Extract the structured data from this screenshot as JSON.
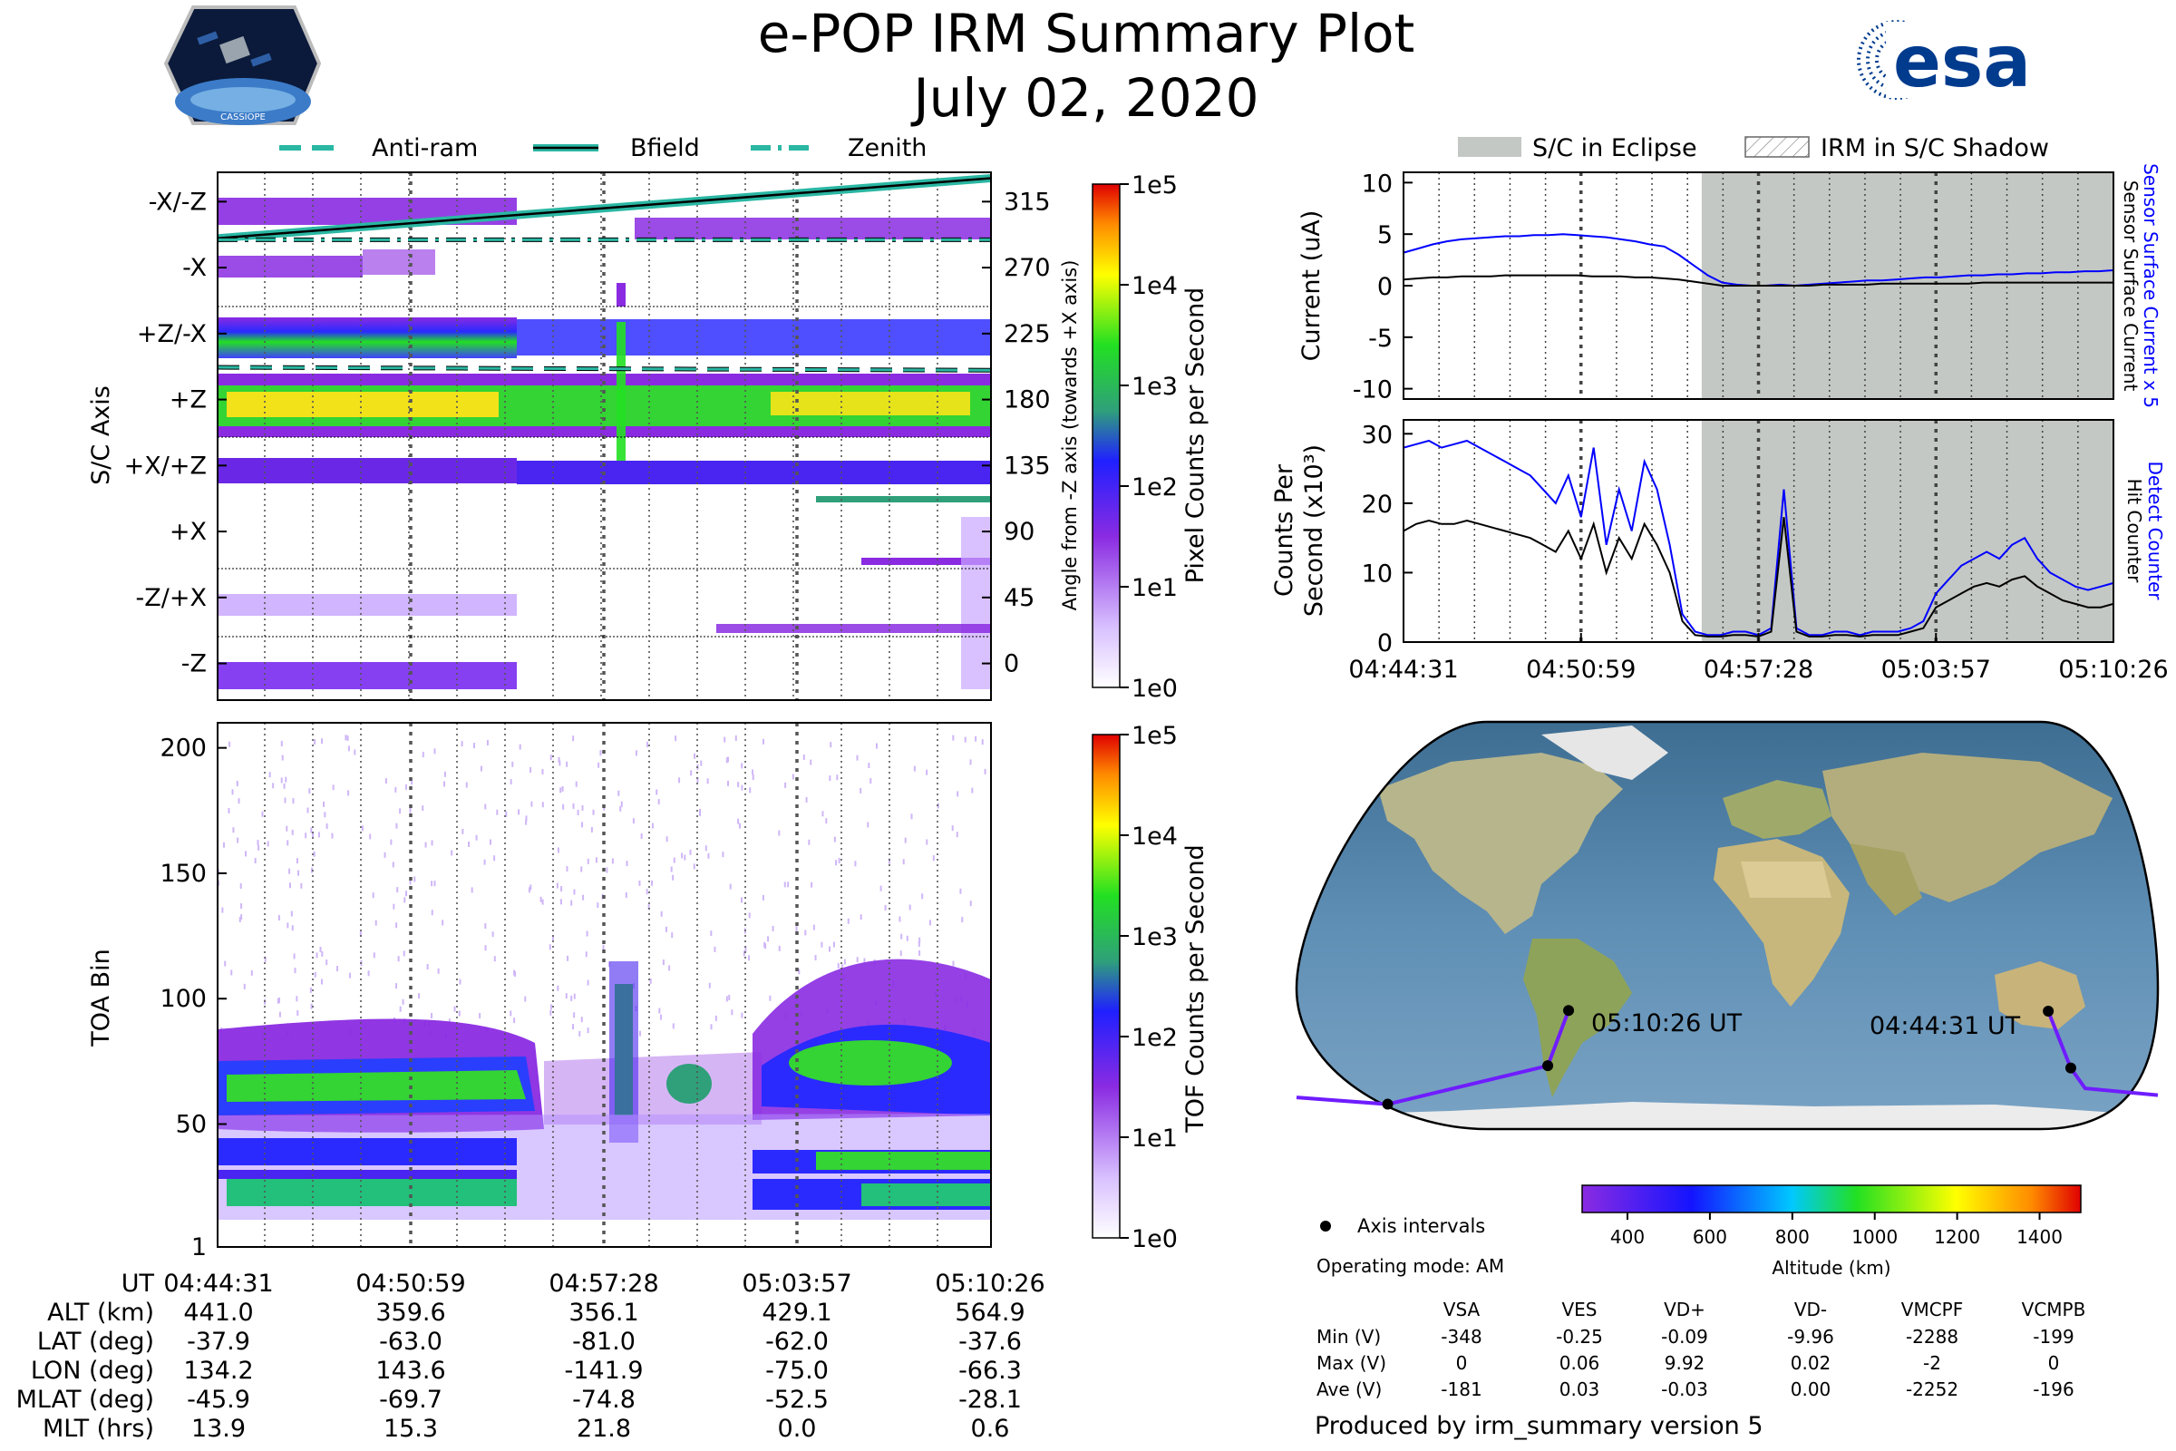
{
  "header": {
    "title": "e-POP IRM Summary Plot",
    "date": "July 02, 2020",
    "mission_logo_text": "CASSIOPE",
    "agency_logo_text": "esa"
  },
  "colors": {
    "accent_teal": "#2ab7a3",
    "line_blue": "#0000ff",
    "eclipse_gray": "#c4c8c4",
    "esa_blue": "#003b8e"
  },
  "chart_data": [
    {
      "id": "angle-spectrogram",
      "type": "heatmap",
      "ylabel": "S/C Axis",
      "y_tick_labels": [
        "-X/-Z",
        "-X",
        "+Z/-X",
        "+Z",
        "+X/+Z",
        "+X",
        "-Z/+X",
        "-Z"
      ],
      "right_ylabel": "Angle from -Z axis (towards +X axis)",
      "right_ticks": [
        315,
        270,
        225,
        180,
        135,
        90,
        45,
        0
      ],
      "right_ylim": [
        -25,
        335
      ],
      "legend": [
        "Anti-ram",
        "Bfield",
        "Zenith"
      ],
      "bfield_start_deg": 290,
      "bfield_end_deg": 331,
      "zenith_deg": 289,
      "antiram_start_deg": 202,
      "antiram_end_deg": 200,
      "colorbar": {
        "label": "Pixel Counts per Second",
        "ticks": [
          "1e5",
          "1e4",
          "1e3",
          "1e2",
          "1e1",
          "1e0"
        ]
      }
    },
    {
      "id": "toa-spectrogram",
      "type": "heatmap",
      "ylabel": "TOA Bin",
      "yticks": [
        200,
        150,
        100,
        50,
        1
      ],
      "ylim": [
        1,
        210
      ],
      "colorbar": {
        "label": "TOF Counts per Second",
        "ticks": [
          "1e5",
          "1e4",
          "1e3",
          "1e2",
          "1e1",
          "1e0"
        ]
      }
    },
    {
      "id": "current-panel",
      "type": "line",
      "ylabel": "Current (uA)",
      "right_labels": [
        "Sensor Surface Current x 5",
        "Sensor Surface Current"
      ],
      "yticks": [
        10,
        5,
        0,
        -5,
        -10
      ],
      "ylim": [
        -11,
        11
      ],
      "legend": [
        "S/C in Eclipse",
        "IRM in S/C Shadow"
      ],
      "eclipse_start_frac": 0.42,
      "series": [
        {
          "name": "Sensor Surface Current x 5",
          "color": "#0000ff",
          "values": [
            3.2,
            3.6,
            4.0,
            4.3,
            4.5,
            4.6,
            4.7,
            4.8,
            4.8,
            4.9,
            4.9,
            5.0,
            4.9,
            4.8,
            4.7,
            4.5,
            4.3,
            4.0,
            3.8,
            3.0,
            2.0,
            1.0,
            0.3,
            0.1,
            0.0,
            0.0,
            0.1,
            0.0,
            0.1,
            0.2,
            0.3,
            0.4,
            0.5,
            0.5,
            0.6,
            0.7,
            0.8,
            0.8,
            0.9,
            1.0,
            1.0,
            1.1,
            1.1,
            1.2,
            1.2,
            1.3,
            1.3,
            1.4,
            1.4,
            1.5
          ]
        },
        {
          "name": "Sensor Surface Current",
          "color": "#000000",
          "values": [
            0.6,
            0.7,
            0.8,
            0.8,
            0.9,
            0.9,
            0.9,
            1.0,
            1.0,
            1.0,
            1.0,
            1.0,
            1.0,
            0.9,
            0.9,
            0.9,
            0.8,
            0.8,
            0.7,
            0.6,
            0.4,
            0.2,
            0.0,
            0.0,
            0.0,
            0.0,
            0.0,
            0.0,
            0.0,
            0.1,
            0.1,
            0.1,
            0.1,
            0.2,
            0.2,
            0.2,
            0.2,
            0.2,
            0.2,
            0.2,
            0.3,
            0.3,
            0.3,
            0.3,
            0.3,
            0.3,
            0.3,
            0.3,
            0.3,
            0.3
          ]
        }
      ]
    },
    {
      "id": "counts-panel",
      "type": "line",
      "ylabel": "Counts Per Second (x10³)",
      "ylabel_line1": "Counts Per",
      "ylabel_line2": "Second (x10³)",
      "right_labels": [
        "Detect Counter",
        "Hit Counter"
      ],
      "yticks": [
        30,
        20,
        10,
        0
      ],
      "ylim": [
        0,
        32
      ],
      "xticks": [
        "04:44:31",
        "04:50:59",
        "04:57:28",
        "05:03:57",
        "05:10:26"
      ],
      "series": [
        {
          "name": "Detect Counter",
          "color": "#0000ff",
          "values": [
            28,
            28.5,
            29,
            28,
            28.5,
            29,
            28,
            27,
            26,
            25,
            24,
            22,
            20,
            24,
            18,
            28,
            14,
            22,
            16,
            26,
            22,
            14,
            4,
            1.5,
            1,
            1,
            1.5,
            1.5,
            1,
            2,
            22,
            2,
            1,
            1,
            1.5,
            1.5,
            1,
            1.5,
            1.5,
            1.5,
            2,
            3,
            7,
            9,
            11,
            12,
            13,
            12,
            14,
            15,
            12,
            10,
            9,
            8,
            7.5,
            8,
            8.5
          ]
        },
        {
          "name": "Hit Counter",
          "color": "#000000",
          "values": [
            16,
            17,
            17.5,
            17,
            17,
            17.5,
            17,
            16.5,
            16,
            15.5,
            15,
            14,
            13,
            16,
            12,
            17,
            10,
            15,
            12,
            17,
            14,
            10,
            3,
            1,
            0.8,
            0.8,
            1,
            1,
            0.8,
            1.5,
            18,
            1.5,
            0.8,
            0.8,
            1,
            1,
            0.8,
            1,
            1,
            1,
            1.5,
            2,
            5,
            6,
            7,
            8,
            8.5,
            8,
            9,
            9.5,
            8,
            7,
            6,
            5.5,
            5,
            5,
            5.5
          ]
        }
      ]
    },
    {
      "id": "ground-track-map",
      "type": "scatter",
      "start_label": "04:44:31 UT",
      "end_label": "05:10:26 UT",
      "axis_intervals_label": "Axis intervals",
      "colorbar": {
        "label": "Altitude (km)",
        "ticks": [
          400,
          600,
          800,
          1000,
          1200,
          1400
        ],
        "range": [
          290,
          1500
        ]
      },
      "track_points": [
        {
          "lon": 134.2,
          "lat": -37.9,
          "alt": 441.0
        },
        {
          "lon": 143.6,
          "lat": -63.0,
          "alt": 359.6
        },
        {
          "lon": -141.9,
          "lat": -81.0,
          "alt": 356.1
        },
        {
          "lon": -75.0,
          "lat": -62.0,
          "alt": 429.1
        },
        {
          "lon": -66.3,
          "lat": -37.6,
          "alt": 564.9
        }
      ]
    }
  ],
  "time_axis": {
    "labels": [
      "UT",
      "ALT (km)",
      "LAT (deg)",
      "LON (deg)",
      "MLAT (deg)",
      "MLT (hrs)"
    ],
    "columns": [
      [
        "04:44:31",
        "441.0",
        "-37.9",
        "134.2",
        "-45.9",
        "13.9"
      ],
      [
        "04:50:59",
        "359.6",
        "-63.0",
        "143.6",
        "-69.7",
        "15.3"
      ],
      [
        "04:57:28",
        "356.1",
        "-81.0",
        "-141.9",
        "-74.8",
        "21.8"
      ],
      [
        "05:03:57",
        "429.1",
        "-62.0",
        "-75.0",
        "-52.5",
        "0.0"
      ],
      [
        "05:10:26",
        "564.9",
        "-37.6",
        "-66.3",
        "-28.1",
        "0.6"
      ]
    ]
  },
  "voltage_table": {
    "operating_mode": "Operating mode: AM",
    "headers": [
      "VSA",
      "VES",
      "VD+",
      "VD-",
      "VMCPF",
      "VCMPB"
    ],
    "rows": [
      {
        "label": "Min (V)",
        "values": [
          "-348",
          "-0.25",
          "-0.09",
          "-9.96",
          "-2288",
          "-199"
        ]
      },
      {
        "label": "Max (V)",
        "values": [
          "0",
          "0.06",
          "9.92",
          "0.02",
          "-2",
          "0"
        ]
      },
      {
        "label": "Ave (V)",
        "values": [
          "-181",
          "0.03",
          "-0.03",
          "0.00",
          "-2252",
          "-196"
        ]
      }
    ]
  },
  "footer": {
    "produced_by": "Produced by irm_summary version 5"
  }
}
